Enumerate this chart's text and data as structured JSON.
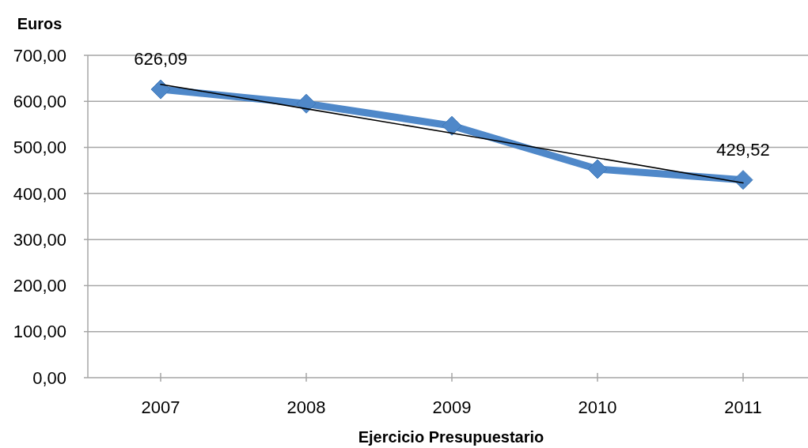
{
  "chart_data": {
    "type": "line",
    "ylabel": "Euros",
    "xlabel": "Ejercicio Presupuestario",
    "categories": [
      "2007",
      "2008",
      "2009",
      "2010",
      "2011"
    ],
    "series": [
      {
        "color": "#4f88c9",
        "values": [
          626.09,
          595,
          547,
          453,
          429.52
        ],
        "value_labels": [
          "626,09",
          null,
          null,
          null,
          "429,52"
        ]
      },
      {
        "type": "line",
        "values": [
          637,
          584,
          531,
          477,
          423
        ],
        "color": "#000000",
        "marker": "none"
      }
    ],
    "ylim": [
      0,
      700
    ],
    "yticks": [
      {
        "value": 0,
        "label": "0,00"
      },
      {
        "value": 100,
        "label": "100,00"
      },
      {
        "value": 200,
        "label": "200,00"
      },
      {
        "value": 300,
        "label": "300,00"
      },
      {
        "value": 400,
        "label": "400,00"
      },
      {
        "value": 500,
        "label": "500,00"
      },
      {
        "value": 600,
        "label": "600,00"
      },
      {
        "value": 700,
        "label": "700,00"
      }
    ],
    "grid": "y",
    "marker": "diamond"
  }
}
